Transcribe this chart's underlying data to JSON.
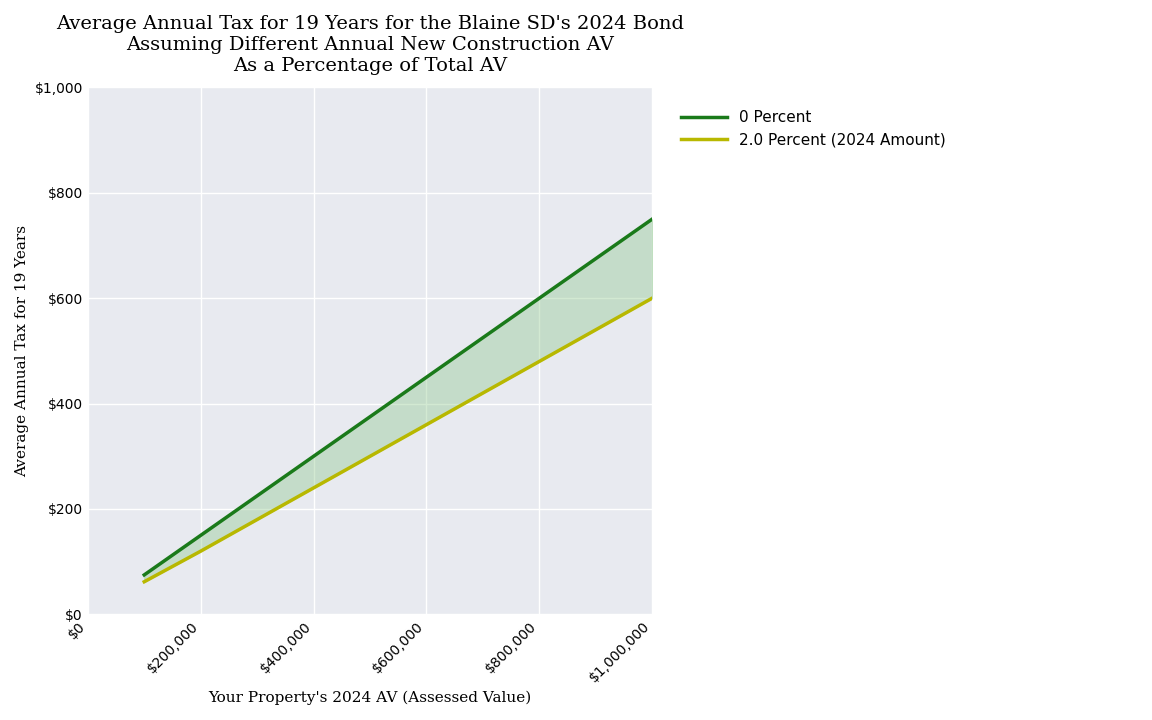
{
  "title_line1": "Average Annual Tax for 19 Years for the Blaine SD's 2024 Bond",
  "title_line2": "Assuming Different Annual New Construction AV",
  "title_line3": "As a Percentage of Total AV",
  "xlabel": "Your Property's 2024 AV (Assessed Value)",
  "ylabel": "Average Annual Tax for 19 Years",
  "x_values": [
    100000,
    200000,
    300000,
    400000,
    500000,
    600000,
    700000,
    800000,
    900000,
    1000000
  ],
  "y_zero_percent": [
    75,
    150,
    225,
    300,
    375,
    450,
    525,
    600,
    675,
    750
  ],
  "y_two_percent": [
    62,
    120,
    180,
    240,
    300,
    360,
    420,
    480,
    540,
    600
  ],
  "color_zero": "#1a7a1a",
  "color_two": "#b8b800",
  "fill_color": "#90c890",
  "fill_alpha": 0.4,
  "line_width": 2.5,
  "background_color": "#e8eaf0",
  "legend_labels": [
    "0 Percent",
    "2.0 Percent (2024 Amount)"
  ],
  "xlim": [
    0,
    1000000
  ],
  "ylim": [
    0,
    1000
  ],
  "xtick_values": [
    0,
    200000,
    400000,
    600000,
    800000,
    1000000
  ],
  "xtick_labels": [
    "$0",
    "$200,000",
    "$400,000",
    "$600,000",
    "$800,000",
    "$1,000,000"
  ],
  "ytick_values": [
    0,
    200,
    400,
    600,
    800,
    1000
  ],
  "ytick_labels": [
    "$0",
    "$200",
    "$400",
    "$600",
    "$800",
    "$1,000"
  ],
  "title_fontsize": 14,
  "label_fontsize": 11,
  "tick_fontsize": 10,
  "legend_fontsize": 11
}
